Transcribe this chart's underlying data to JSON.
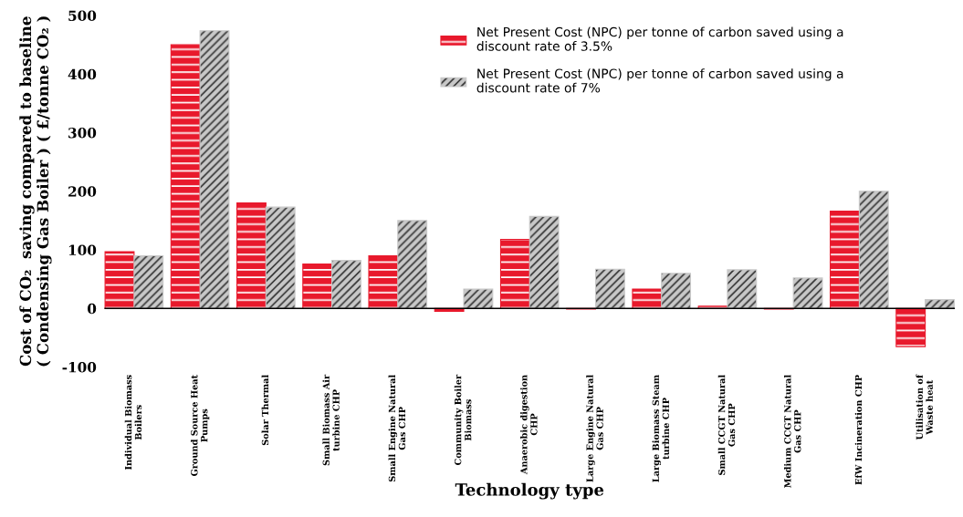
{
  "chart_data": {
    "type": "bar",
    "xlabel": "Technology type",
    "ylabel": "Cost of CO₂  saving compared to baseline\n( Condensing Gas Boiler ) ( £/tonne CO₂ )",
    "categories": [
      "Individual Biomass\nBoilers",
      "Ground Source Heat\nPumps",
      "Solar Thermal",
      "Small Biomass Air\nturbine CHP",
      "Small Engine Natural\nGas CHP",
      "Community Boiler\nBiomass",
      "Anaerobic digestion\nCHP",
      "Large Engine Natural\nGas CHP",
      "Large Biomass Steam\nturbine CHP",
      "Small CCGT Natural\nGas CHP",
      "Medium CCGT Natural\nGas CHP",
      "EfW Incineration CHP",
      "Utilisation of\nWaste heat"
    ],
    "series": [
      {
        "name": "Net Present Cost (NPC) per tonne of carbon saved using a\ndiscount rate of 3.5%",
        "color": "#e8192c",
        "values": [
          97,
          450,
          180,
          76,
          90,
          -5,
          118,
          -1,
          33,
          4,
          -1,
          166,
          -65
        ]
      },
      {
        "name": "Net Present Cost (NPC) per tonne of carbon saved using a\ndiscount rate of 7%",
        "color": "#c8c8c8",
        "values": [
          90,
          474,
          173,
          82,
          150,
          33,
          157,
          67,
          60,
          66,
          52,
          200,
          15
        ]
      }
    ],
    "ylim": [
      -100,
      500
    ],
    "yticks": [
      -100,
      0,
      100,
      200,
      300,
      400,
      500
    ],
    "legend": "top right"
  }
}
